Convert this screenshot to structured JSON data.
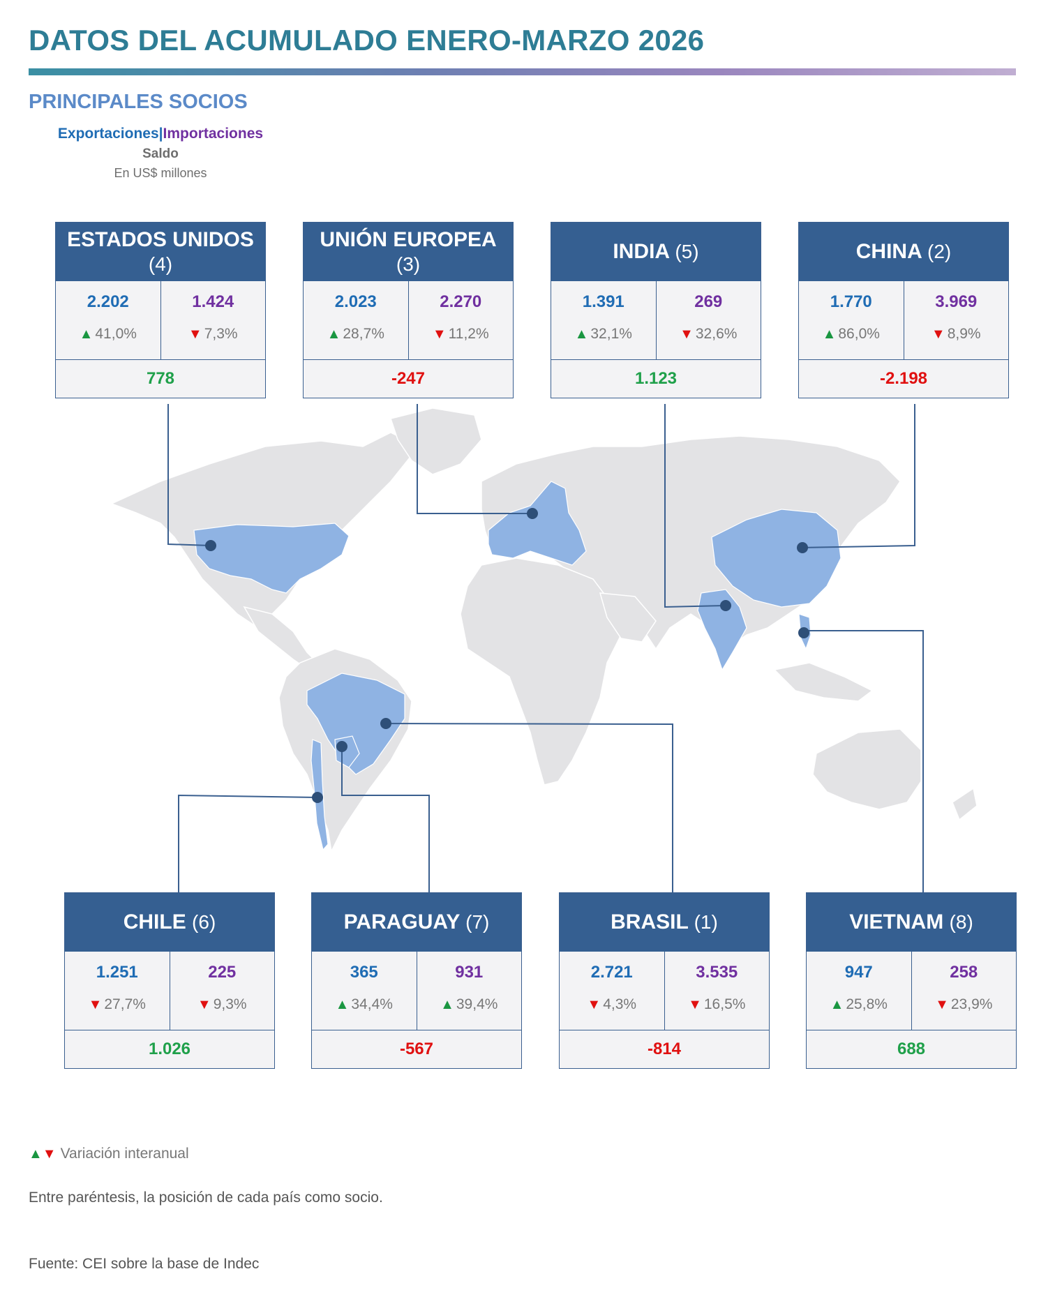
{
  "title": "DATOS DEL ACUMULADO ENERO-MARZO 2026",
  "subtitle": "PRINCIPALES SOCIOS",
  "legend": {
    "exports": "Exportaciones",
    "separator": "|",
    "imports": "Importaciones",
    "balance": "Saldo",
    "units": "En US$ millones"
  },
  "colors": {
    "header": "#355f91",
    "exports": "#1f6cb4",
    "imports": "#7030a0",
    "balance_positive": "#1fa04a",
    "balance_negative": "#e01010",
    "up": "#1a9641",
    "down": "#e01010",
    "highlight_country": "#8fb3e3",
    "land": "#e3e3e5"
  },
  "partners": [
    {
      "name": "ESTADOS UNIDOS",
      "position": "(4)",
      "exports": "2.202",
      "exports_var": "41,0%",
      "exports_dir": "up",
      "imports": "1.424",
      "imports_var": "7,3%",
      "imports_dir": "down",
      "balance": "778",
      "balance_sign": "positive"
    },
    {
      "name": "UNIÓN EUROPEA",
      "position": "(3)",
      "exports": "2.023",
      "exports_var": "28,7%",
      "exports_dir": "up",
      "imports": "2.270",
      "imports_var": "11,2%",
      "imports_dir": "down",
      "balance": "-247",
      "balance_sign": "negative"
    },
    {
      "name": "INDIA",
      "position": "(5)",
      "exports": "1.391",
      "exports_var": "32,1%",
      "exports_dir": "up",
      "imports": "269",
      "imports_var": "32,6%",
      "imports_dir": "down",
      "balance": "1.123",
      "balance_sign": "positive"
    },
    {
      "name": "CHINA",
      "position": "(2)",
      "exports": "1.770",
      "exports_var": "86,0%",
      "exports_dir": "up",
      "imports": "3.969",
      "imports_var": "8,9%",
      "imports_dir": "down",
      "balance": "-2.198",
      "balance_sign": "negative"
    },
    {
      "name": "CHILE",
      "position": "(6)",
      "exports": "1.251",
      "exports_var": "27,7%",
      "exports_dir": "down",
      "imports": "225",
      "imports_var": "9,3%",
      "imports_dir": "down",
      "balance": "1.026",
      "balance_sign": "positive"
    },
    {
      "name": "PARAGUAY",
      "position": "(7)",
      "exports": "365",
      "exports_var": "34,4%",
      "exports_dir": "up",
      "imports": "931",
      "imports_var": "39,4%",
      "imports_dir": "up",
      "balance": "-567",
      "balance_sign": "negative"
    },
    {
      "name": "BRASIL",
      "position": "(1)",
      "exports": "2.721",
      "exports_var": "4,3%",
      "exports_dir": "down",
      "imports": "3.535",
      "imports_var": "16,5%",
      "imports_dir": "down",
      "balance": "-814",
      "balance_sign": "negative"
    },
    {
      "name": "VIETNAM",
      "position": "(8)",
      "exports": "947",
      "exports_var": "25,8%",
      "exports_dir": "up",
      "imports": "258",
      "imports_var": "23,9%",
      "imports_dir": "down",
      "balance": "688",
      "balance_sign": "positive"
    }
  ],
  "footer": {
    "arrows": "▲▼",
    "variation_label": "Variación interanual",
    "note": "Entre paréntesis, la posición de cada país como socio.",
    "source": "Fuente: CEI sobre la base de Indec"
  }
}
